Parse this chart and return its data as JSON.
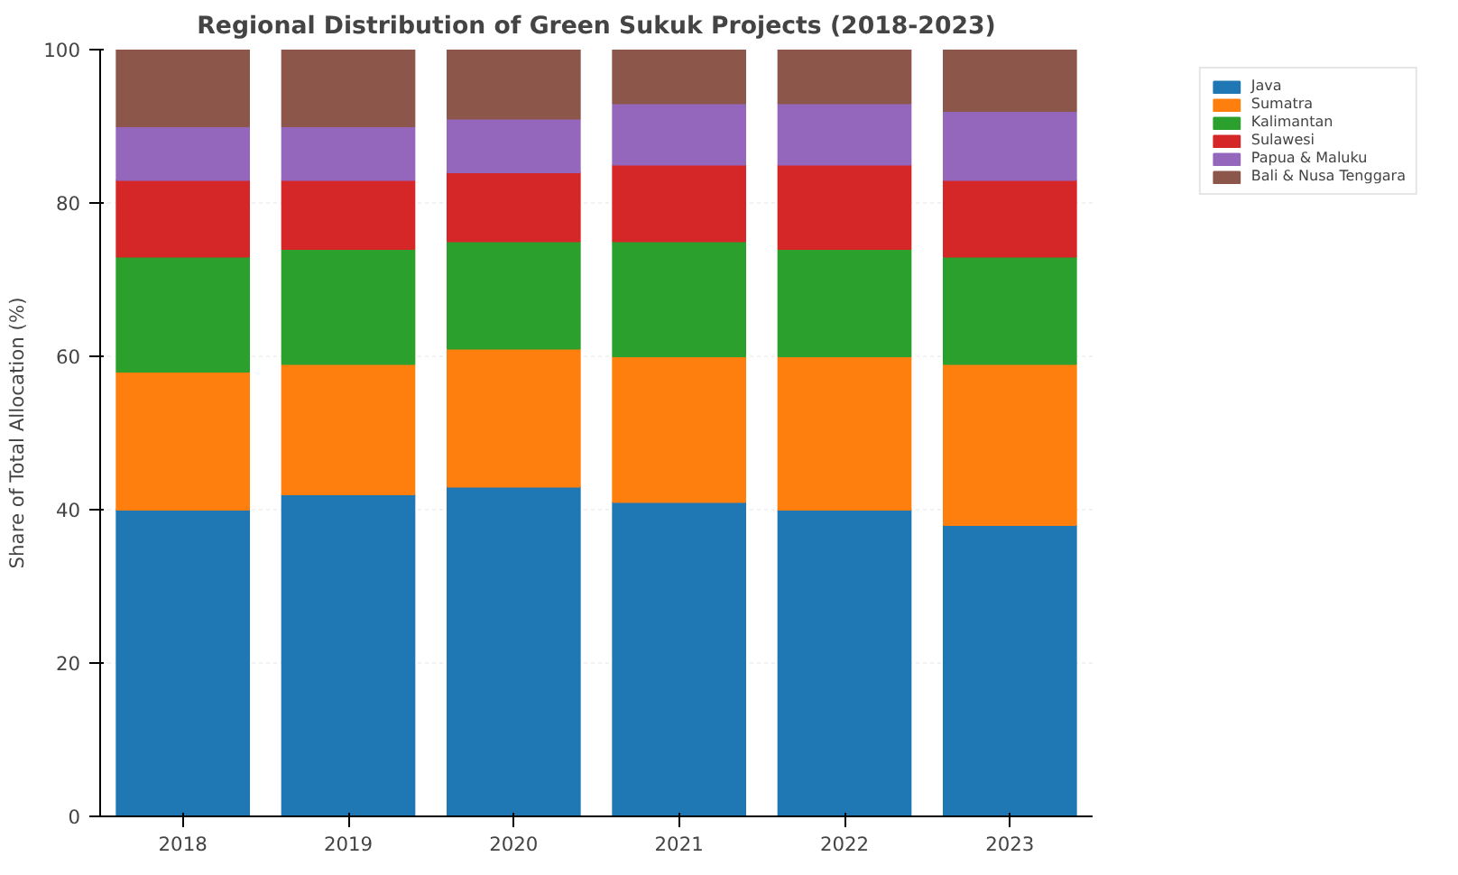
{
  "chart_data": {
    "type": "bar",
    "stacked": true,
    "title": "Regional Distribution of Green Sukuk Projects (2018-2023)",
    "ylabel": "Share of Total Allocation (%)",
    "categories": [
      "2018",
      "2019",
      "2020",
      "2021",
      "2022",
      "2023"
    ],
    "ylim": [
      0,
      100
    ],
    "yticks": [
      0,
      20,
      40,
      60,
      80,
      100
    ],
    "grid": true,
    "legend": "top right",
    "series": [
      {
        "name": "Java",
        "color": "#1f77b4",
        "values": [
          40,
          42,
          43,
          41,
          40,
          38
        ]
      },
      {
        "name": "Sumatra",
        "color": "#ff7f0e",
        "values": [
          18,
          17,
          18,
          19,
          20,
          21
        ]
      },
      {
        "name": "Kalimantan",
        "color": "#2ca02c",
        "values": [
          15,
          15,
          14,
          15,
          14,
          14
        ]
      },
      {
        "name": "Sulawesi",
        "color": "#d62728",
        "values": [
          10,
          9,
          9,
          10,
          11,
          10
        ]
      },
      {
        "name": "Papua & Maluku",
        "color": "#9467bd",
        "values": [
          7,
          7,
          7,
          8,
          8,
          9
        ]
      },
      {
        "name": "Bali & Nusa Tenggara",
        "color": "#8c564b",
        "values": [
          10,
          10,
          9,
          7,
          7,
          8
        ]
      }
    ]
  }
}
